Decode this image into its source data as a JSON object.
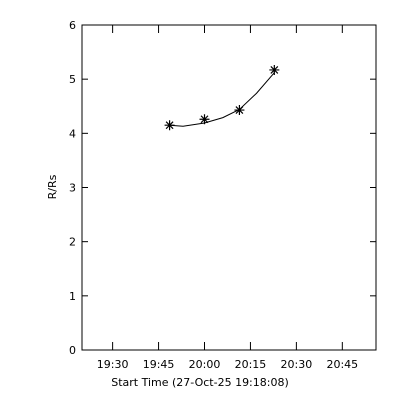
{
  "chart_data": {
    "type": "scatter",
    "xlabel": "Start Time (27-Oct-25 19:18:08)",
    "ylabel": "R/Rs",
    "xlim": [
      1160,
      1256
    ],
    "xticks": [
      {
        "value": 1170,
        "label": "19:30"
      },
      {
        "value": 1185,
        "label": "19:45"
      },
      {
        "value": 1200,
        "label": "20:00"
      },
      {
        "value": 1215,
        "label": "20:15"
      },
      {
        "value": 1230,
        "label": "20:30"
      },
      {
        "value": 1245,
        "label": "20:45"
      }
    ],
    "ylim": [
      0,
      6
    ],
    "yticks": [
      0,
      1,
      2,
      3,
      4,
      5,
      6
    ],
    "series": [
      {
        "color": "#000000",
        "marker": "asterisk",
        "x": [
          1188.6,
          1200,
          1211.4,
          1222.8
        ],
        "values": [
          4.15,
          4.26,
          4.43,
          5.17
        ]
      },
      {
        "color": "#000000",
        "marker": "line",
        "x": [
          1188.6,
          1193,
          1200,
          1206,
          1211.4,
          1217,
          1222.8
        ],
        "values": [
          4.15,
          4.13,
          4.19,
          4.29,
          4.44,
          4.74,
          5.12
        ]
      }
    ]
  }
}
